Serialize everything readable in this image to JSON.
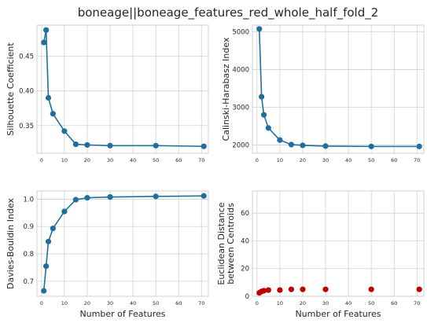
{
  "figure": {
    "title": "boneage||boneage_features_red_whole_half_fold_2"
  },
  "chart_data": [
    {
      "type": "line",
      "ylabel": "Silhouette Coefficient",
      "xlabel": "",
      "xlim": [
        -2,
        73
      ],
      "ylim": [
        0.31,
        0.495
      ],
      "xticks": [
        "0",
        "10",
        "20",
        "30",
        "40",
        "50",
        "60",
        "70"
      ],
      "xtick_values": [
        0,
        10,
        20,
        30,
        40,
        50,
        60,
        70
      ],
      "yticks": [
        "0.35",
        "0.40",
        "0.45"
      ],
      "ytick_values": [
        0.35,
        0.4,
        0.45
      ],
      "grid": true,
      "color": "#1f6f9e",
      "x": [
        1,
        2,
        3,
        5,
        10,
        15,
        20,
        30,
        50,
        71
      ],
      "y": [
        0.47,
        0.488,
        0.39,
        0.367,
        0.342,
        0.323,
        0.322,
        0.321,
        0.321,
        0.32
      ]
    },
    {
      "type": "line",
      "ylabel": "Calinski-Harabasz Index",
      "xlabel": "",
      "xlim": [
        -2,
        73
      ],
      "ylim": [
        1780,
        5180
      ],
      "xticks": [
        "0",
        "10",
        "20",
        "30",
        "40",
        "50",
        "60",
        "70"
      ],
      "xtick_values": [
        0,
        10,
        20,
        30,
        40,
        50,
        60,
        70
      ],
      "yticks": [
        "2000",
        "3000",
        "4000",
        "5000"
      ],
      "ytick_values": [
        2000,
        3000,
        4000,
        5000
      ],
      "grid": true,
      "color": "#1f6f9e",
      "x": [
        1,
        2,
        3,
        5,
        10,
        15,
        20,
        30,
        50,
        71
      ],
      "y": [
        5080,
        3280,
        2800,
        2450,
        2130,
        2010,
        1990,
        1970,
        1960,
        1960
      ]
    },
    {
      "type": "line",
      "ylabel": "Davies-Bouldin Index",
      "xlabel": "Number of Features",
      "xlim": [
        -2,
        73
      ],
      "ylim": [
        0.645,
        1.03
      ],
      "xticks": [
        "0",
        "10",
        "20",
        "30",
        "40",
        "50",
        "60",
        "70"
      ],
      "xtick_values": [
        0,
        10,
        20,
        30,
        40,
        50,
        60,
        70
      ],
      "yticks": [
        "0.7",
        "0.8",
        "0.9",
        "1.0"
      ],
      "ytick_values": [
        0.7,
        0.8,
        0.9,
        1.0
      ],
      "grid": true,
      "color": "#1f6f9e",
      "x": [
        1,
        2,
        3,
        5,
        10,
        15,
        20,
        30,
        50,
        71
      ],
      "y": [
        0.665,
        0.755,
        0.845,
        0.893,
        0.955,
        0.998,
        1.005,
        1.008,
        1.01,
        1.012
      ]
    },
    {
      "type": "scatter",
      "ylabel": "Euclidean Distance between Centroids",
      "ylabel_lines": [
        "Euclidean Distance",
        "between Centroids"
      ],
      "xlabel": "Number of Features",
      "xlim": [
        -2,
        73
      ],
      "ylim": [
        0,
        76
      ],
      "xticks": [
        "0",
        "10",
        "20",
        "30",
        "40",
        "50",
        "60",
        "70"
      ],
      "xtick_values": [
        0,
        10,
        20,
        30,
        40,
        50,
        60,
        70
      ],
      "yticks": [
        "0",
        "20",
        "40",
        "60"
      ],
      "ytick_values": [
        0,
        20,
        40,
        60
      ],
      "grid": true,
      "color": "#c00000",
      "x": [
        1,
        2,
        3,
        5,
        10,
        15,
        20,
        30,
        50,
        71
      ],
      "y": [
        2.5,
        3.5,
        4.0,
        4.5,
        4.5,
        5.0,
        5.0,
        5.0,
        5.0,
        5.0
      ]
    }
  ]
}
